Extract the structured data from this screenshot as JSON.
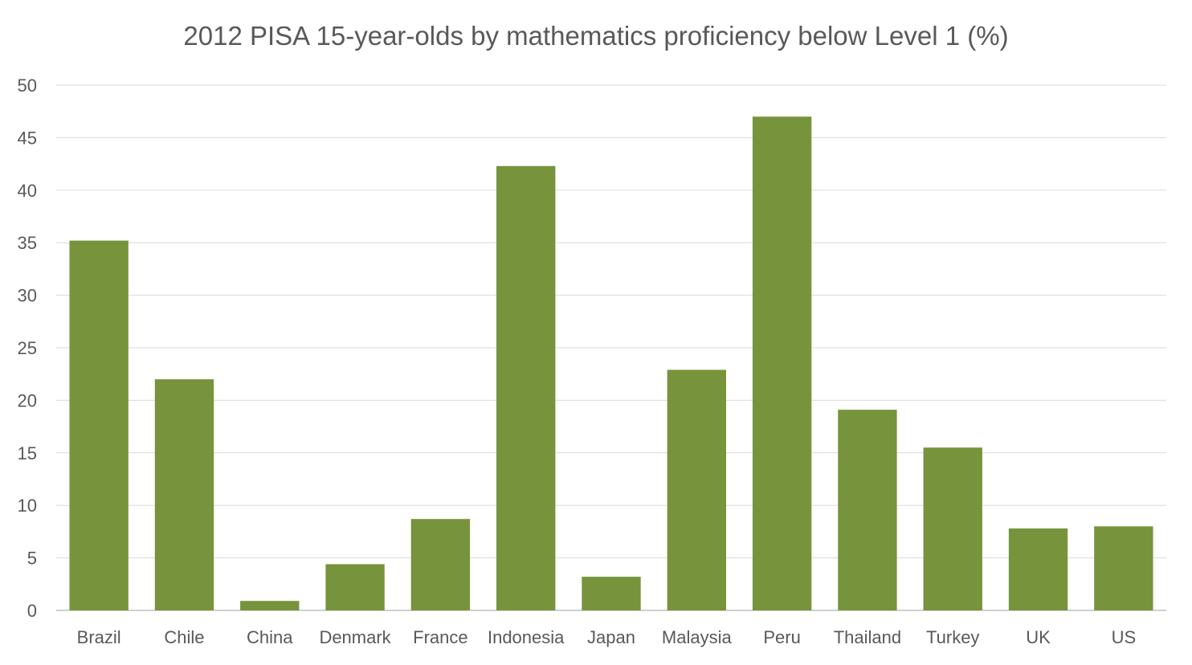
{
  "chart_data": {
    "type": "bar",
    "title": "2012 PISA  15-year-olds by mathematics proficiency below Level 1 (%)",
    "xlabel": "",
    "ylabel": "",
    "categories": [
      "Brazil",
      "Chile",
      "China",
      "Denmark",
      "France",
      "Indonesia",
      "Japan",
      "Malaysia",
      "Peru",
      "Thailand",
      "Turkey",
      "UK",
      "US"
    ],
    "values": [
      35.2,
      22.0,
      0.9,
      4.4,
      8.7,
      42.3,
      3.2,
      22.9,
      47.0,
      19.1,
      15.5,
      7.8,
      8.0
    ],
    "ylim": [
      0,
      50
    ],
    "yticks": [
      0,
      5,
      10,
      15,
      20,
      25,
      30,
      35,
      40,
      45,
      50
    ],
    "grid": true,
    "legend": "none",
    "colors": {
      "bar": "#77933C",
      "grid": "#D9D9D9",
      "axis": "#BFBFBF",
      "text": "#595959"
    }
  }
}
